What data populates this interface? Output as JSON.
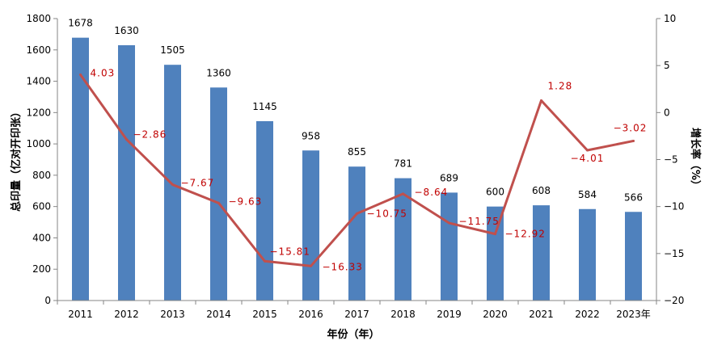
{
  "chart_data": {
    "type": "bar",
    "title": "",
    "categories": [
      "2011",
      "2012",
      "2013",
      "2014",
      "2015",
      "2016",
      "2017",
      "2018",
      "2019",
      "2020",
      "2021",
      "2022",
      "2023年"
    ],
    "xlabel": "年份（年）",
    "ylabel": "总印量（亿对开印张）",
    "y2label": "增长率（%）",
    "ylim": [
      0,
      1800
    ],
    "yticks": [
      0,
      200,
      400,
      600,
      800,
      1000,
      1200,
      1400,
      1600,
      1800
    ],
    "y2lim": [
      -20,
      10
    ],
    "y2ticks": [
      10,
      5,
      0,
      -5,
      -10,
      -15,
      -20
    ],
    "y2tick_labels": [
      "10",
      "5",
      "0",
      "−5",
      "−10",
      "−15",
      "−20"
    ],
    "grid": false,
    "series": [
      {
        "type": "bar",
        "axis": "left",
        "color": "#4f81bd",
        "values": [
          1678,
          1630,
          1505,
          1360,
          1145,
          958,
          855,
          781,
          689,
          600,
          608,
          584,
          566
        ],
        "labels": [
          "1678",
          "1630",
          "1505",
          "1360",
          "1145",
          "958",
          "855",
          "781",
          "689",
          "600",
          "608",
          "584",
          "566"
        ]
      },
      {
        "type": "line",
        "axis": "right",
        "color": "#c0504d",
        "label_color": "#c00000",
        "values": [
          4.03,
          -2.86,
          -7.67,
          -9.63,
          -15.81,
          -16.33,
          -10.75,
          -8.64,
          -11.75,
          -12.92,
          1.28,
          -4.01,
          -3.02
        ],
        "labels": [
          "4.03",
          "−2.86",
          "−7.67",
          "−9.63",
          "−15.81",
          "−16.33",
          "−10.75",
          "−8.64",
          "−11.75",
          "−12.92",
          "1.28",
          "−4.01",
          "−3.02"
        ]
      }
    ]
  }
}
